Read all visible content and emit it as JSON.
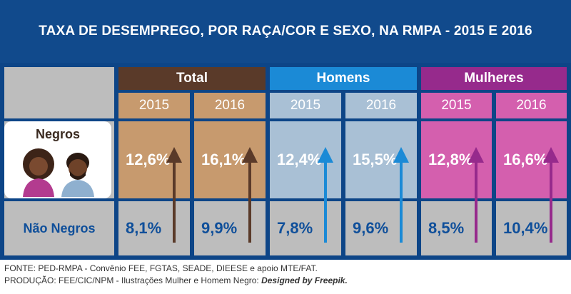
{
  "title": "TAXA DE DESEMPREGO, POR RAÇA/COR E SEXO, NA RMPA - 2015 E 2016",
  "groups": {
    "total": "Total",
    "homens": "Homens",
    "mulheres": "Mulheres"
  },
  "years": [
    "2015",
    "2016",
    "2015",
    "2016",
    "2015",
    "2016"
  ],
  "rows": {
    "negros": {
      "label": "Negros",
      "values": [
        "12,6%",
        "16,1%",
        "12,4%",
        "15,5%",
        "12,8%",
        "16,6%"
      ]
    },
    "nao_negros": {
      "label": "Não Negros",
      "values": [
        "8,1%",
        "9,9%",
        "7,8%",
        "9,6%",
        "8,5%",
        "10,4%"
      ]
    }
  },
  "footer": {
    "line1": "FONTE: PED-RMPA - Convênio FEE, FGTAS, SEADE, DIEESE e apoio MTE/FAT.",
    "line2_prefix": "PRODUÇÃO: FEE/CIC/NPM - Ilustrações Mulher e Homem Negro: ",
    "line2_italic": "Designed by Freepik."
  },
  "colors": {
    "banner": "#114a8c",
    "total": "#5a3a29",
    "homens": "#1b8ad6",
    "mulheres": "#962a8c"
  },
  "chart_data": {
    "type": "table",
    "title": "TAXA DE DESEMPREGO, POR RAÇA/COR E SEXO, NA RMPA - 2015 E 2016",
    "columns": [
      {
        "group": "Total",
        "year": "2015"
      },
      {
        "group": "Total",
        "year": "2016"
      },
      {
        "group": "Homens",
        "year": "2015"
      },
      {
        "group": "Homens",
        "year": "2016"
      },
      {
        "group": "Mulheres",
        "year": "2015"
      },
      {
        "group": "Mulheres",
        "year": "2016"
      }
    ],
    "series": [
      {
        "name": "Negros",
        "values": [
          12.6,
          16.1,
          12.4,
          15.5,
          12.8,
          16.6
        ]
      },
      {
        "name": "Não Negros",
        "values": [
          8.1,
          9.9,
          7.8,
          9.6,
          8.5,
          10.4
        ]
      }
    ]
  }
}
